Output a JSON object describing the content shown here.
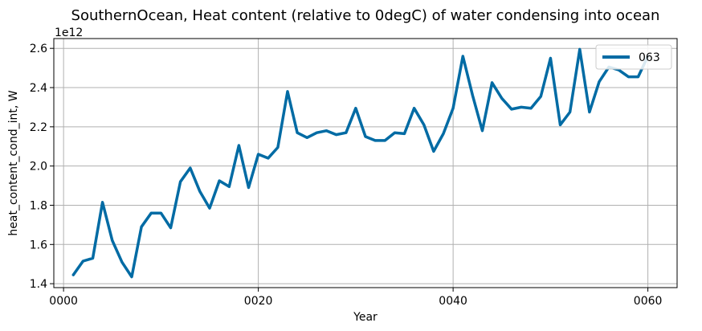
{
  "chart_data": {
    "type": "line",
    "title": "SouthernOcean, Heat content (relative to 0degC) of water condensing into ocean",
    "xlabel": "Year",
    "ylabel": "heat_content_cond_int, W",
    "y_offset_label": "1e12",
    "xlim": [
      -1,
      63
    ],
    "ylim": [
      1.38,
      2.65
    ],
    "x_ticks": [
      0,
      20,
      40,
      60
    ],
    "x_tick_labels": [
      "0000",
      "0020",
      "0040",
      "0060"
    ],
    "y_ticks": [
      1.4,
      1.6,
      1.8,
      2.0,
      2.2,
      2.4,
      2.6
    ],
    "y_tick_labels": [
      "1.4",
      "1.6",
      "1.8",
      "2.0",
      "2.2",
      "2.4",
      "2.6"
    ],
    "grid": true,
    "legend_position": "top-right",
    "series": [
      {
        "name": "063",
        "color": "#006ba4",
        "x": [
          1,
          2,
          3,
          4,
          5,
          6,
          7,
          8,
          9,
          10,
          11,
          12,
          13,
          14,
          15,
          16,
          17,
          18,
          19,
          20,
          21,
          22,
          23,
          24,
          25,
          26,
          27,
          28,
          29,
          30,
          31,
          32,
          33,
          34,
          35,
          36,
          37,
          38,
          39,
          40,
          41,
          42,
          43,
          44,
          45,
          46,
          47,
          48,
          49,
          50,
          51,
          52,
          53,
          54,
          55,
          56,
          57,
          58,
          59,
          60
        ],
        "values": [
          1.445,
          1.515,
          1.53,
          1.815,
          1.62,
          1.51,
          1.435,
          1.69,
          1.76,
          1.76,
          1.685,
          1.92,
          1.99,
          1.87,
          1.785,
          1.925,
          1.895,
          2.105,
          1.89,
          2.06,
          2.04,
          2.095,
          2.38,
          2.17,
          2.145,
          2.17,
          2.18,
          2.16,
          2.17,
          2.295,
          2.15,
          2.13,
          2.13,
          2.17,
          2.165,
          2.295,
          2.21,
          2.075,
          2.165,
          2.295,
          2.56,
          2.36,
          2.18,
          2.425,
          2.345,
          2.29,
          2.3,
          2.295,
          2.355,
          2.55,
          2.21,
          2.275,
          2.595,
          2.275,
          2.43,
          2.505,
          2.49,
          2.455,
          2.455,
          2.56
        ]
      }
    ]
  }
}
